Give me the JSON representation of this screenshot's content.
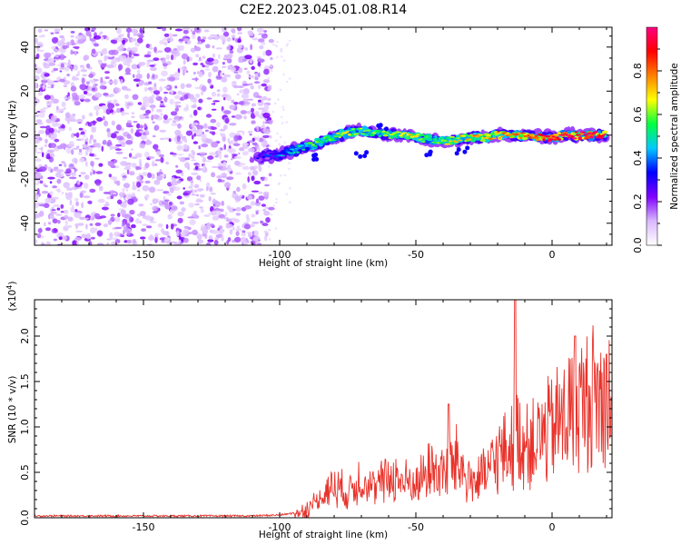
{
  "figure_title": "C2E2.2023.045.01.08.R14",
  "chart_data": [
    {
      "type": "heatmap",
      "title": "C2E2.2023.045.01.08.R14",
      "xlabel": "Height of straight line (km)",
      "ylabel": "Frequency (Hz)",
      "xlim": [
        -190,
        22
      ],
      "ylim": [
        -50,
        49
      ],
      "xticks": [
        -150,
        -100,
        -50,
        0
      ],
      "yticks": [
        -40,
        -20,
        0,
        20,
        40
      ],
      "colorbar": {
        "label": "Normalized spectral amplitude",
        "range": [
          0,
          1
        ],
        "ticks": [
          0.0,
          0.2,
          0.4,
          0.6,
          0.8
        ],
        "colormap": [
          "#ffffff",
          "#d9b8ff",
          "#7f00ff",
          "#0000ff",
          "#00c8ff",
          "#00ff40",
          "#ffff00",
          "#ff8000",
          "#ff0000",
          "#ff0080"
        ]
      },
      "noise_region": {
        "x": [
          -190,
          -103
        ],
        "y": [
          -50,
          49
        ],
        "amplitude": [
          0.05,
          0.2
        ]
      },
      "signal_track": {
        "x": [
          -108,
          -100,
          -95,
          -90,
          -85,
          -80,
          -75,
          -70,
          -65,
          -60,
          -55,
          -50,
          -45,
          -40,
          -35,
          -30,
          -25,
          -20,
          -15,
          -10,
          -5,
          0,
          5,
          10,
          15,
          20
        ],
        "y": [
          -10,
          -9,
          -7,
          -5,
          -3,
          -1,
          1,
          2,
          1,
          0,
          0,
          -1,
          -2,
          -3,
          -2,
          -1,
          -1,
          0,
          0,
          0,
          -1,
          -1,
          0,
          0,
          0,
          0
        ],
        "amplitude": [
          0.2,
          0.3,
          0.4,
          0.45,
          0.5,
          0.55,
          0.55,
          0.5,
          0.5,
          0.55,
          0.6,
          0.6,
          0.5,
          0.55,
          0.6,
          0.65,
          0.65,
          0.7,
          0.7,
          0.75,
          0.8,
          0.85,
          0.85,
          0.9,
          0.9,
          0.9
        ]
      }
    },
    {
      "type": "line",
      "xlabel": "Height of straight line (km)",
      "ylabel": "SNR (10 * v/v)",
      "y_multiplier": "(x10",
      "y_multiplier_exp": "4",
      "y_multiplier_close": ")",
      "xlim": [
        -190,
        22
      ],
      "ylim": [
        0,
        2.4
      ],
      "xticks": [
        -150,
        -100,
        -50,
        0
      ],
      "yticks": [
        0.0,
        0.5,
        1.0,
        1.5,
        2.0
      ],
      "series": [
        {
          "color": "#e8322a",
          "x": [
            -190,
            -170,
            -150,
            -130,
            -110,
            -100,
            -95,
            -90,
            -85,
            -80,
            -75,
            -70,
            -65,
            -60,
            -55,
            -50,
            -45,
            -40,
            -35,
            -30,
            -25,
            -20,
            -15,
            -12,
            -10,
            -5,
            0,
            5,
            8,
            10,
            15,
            20,
            22
          ],
          "y": [
            0.02,
            0.02,
            0.02,
            0.02,
            0.02,
            0.03,
            0.05,
            0.1,
            0.25,
            0.4,
            0.3,
            0.5,
            0.35,
            0.5,
            0.45,
            0.4,
            0.6,
            0.55,
            0.7,
            0.45,
            0.5,
            0.75,
            0.85,
            1.0,
            0.9,
            0.95,
            1.1,
            1.25,
            1.4,
            1.35,
            1.5,
            1.45,
            1.6
          ],
          "peaks": [
            {
              "x": -13.5,
              "y": 2.4
            },
            {
              "x": 8.5,
              "y": 2.0
            },
            {
              "x": -38,
              "y": 1.25
            },
            {
              "x": 20,
              "y": 1.8
            }
          ]
        }
      ]
    }
  ]
}
